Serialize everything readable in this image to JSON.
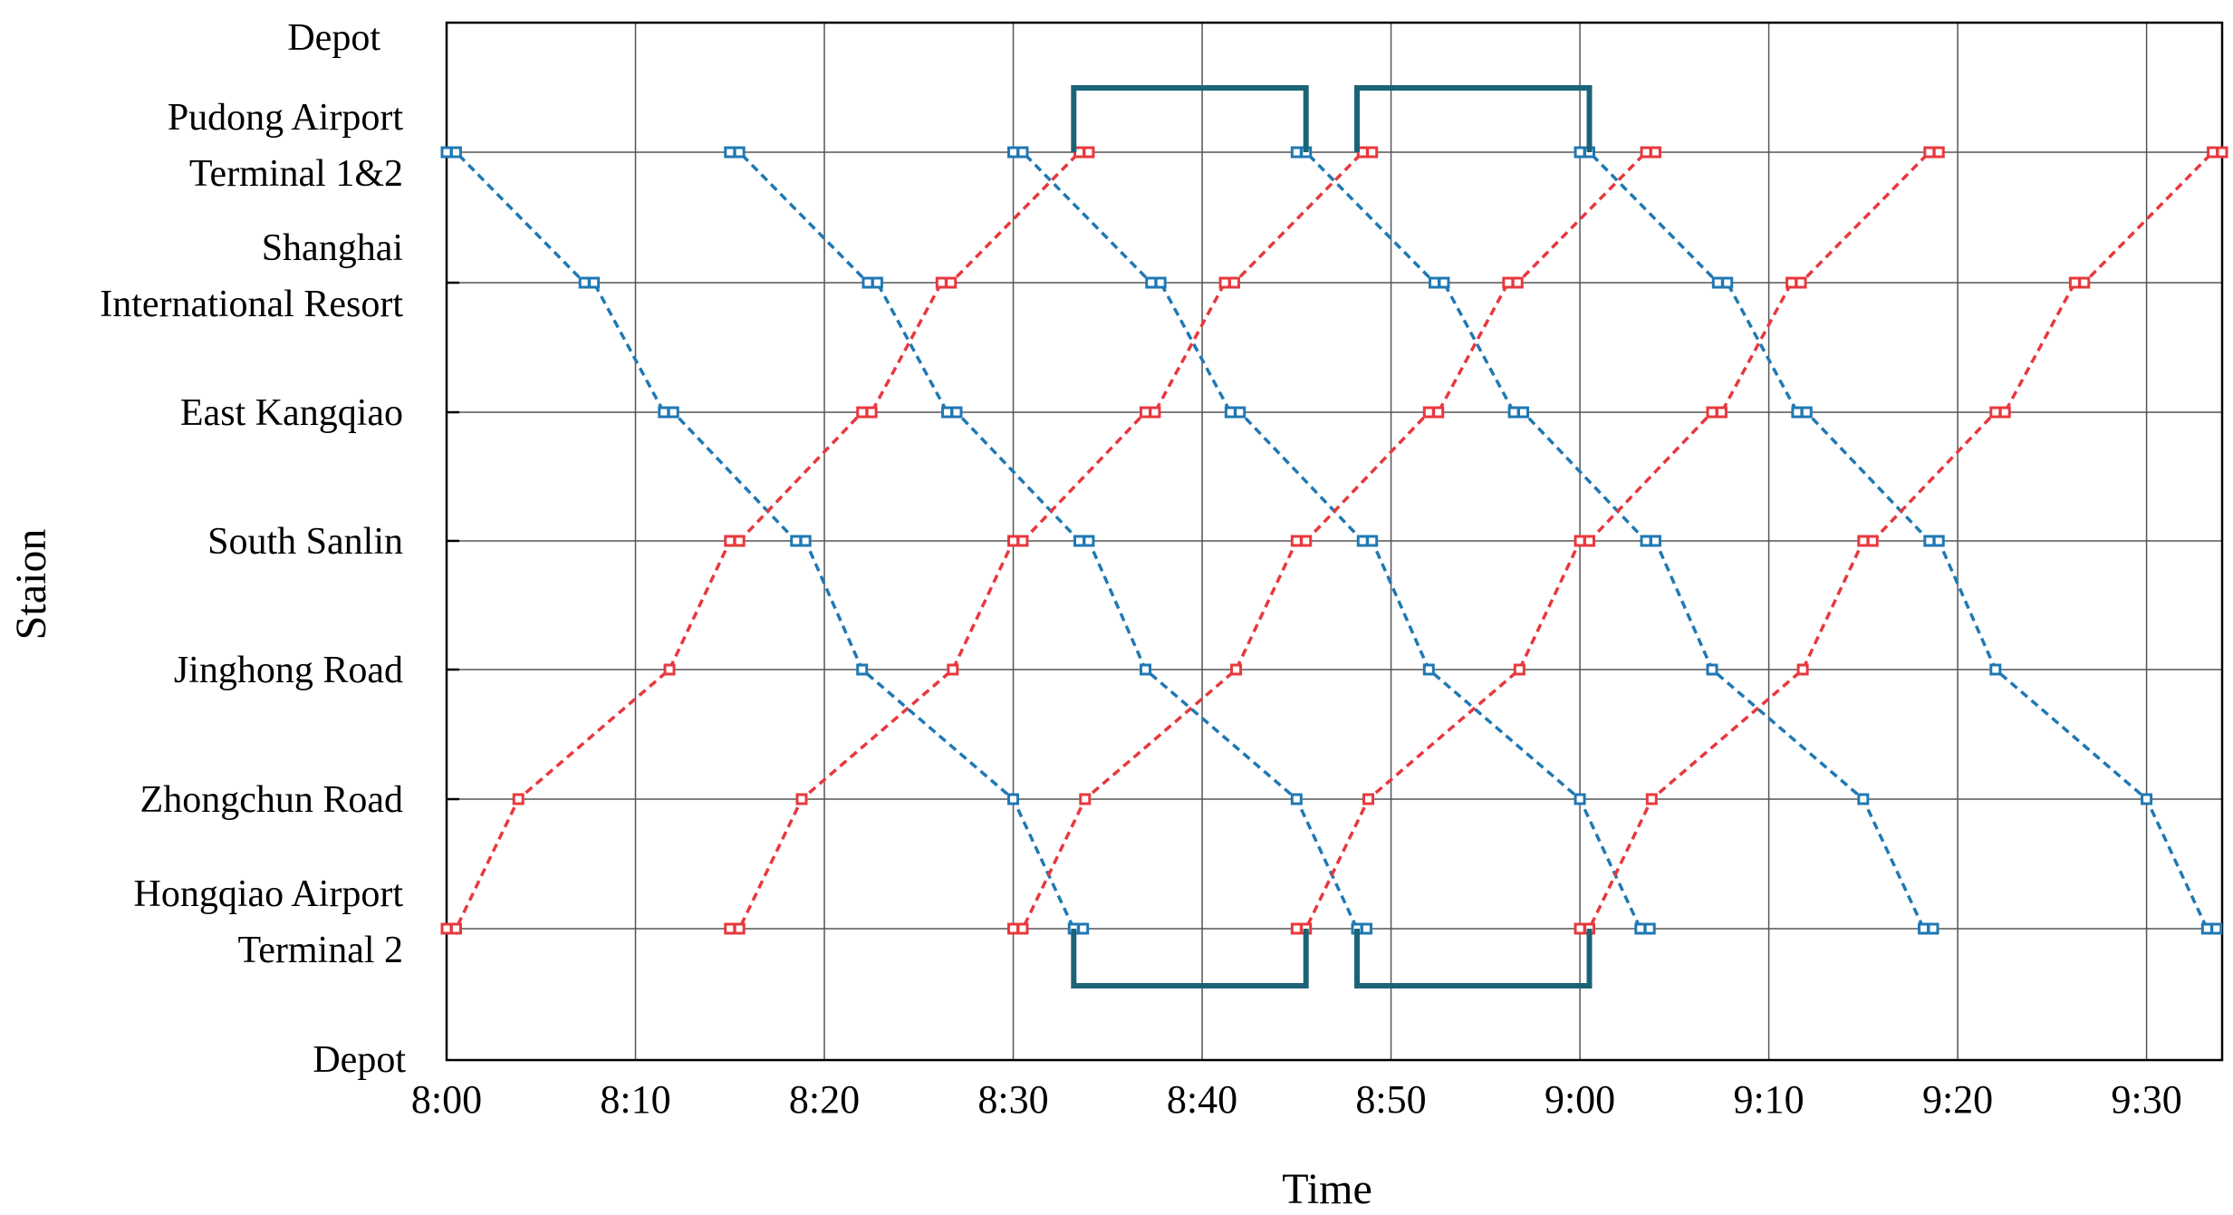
{
  "chart_data": {
    "type": "line",
    "xlabel": "Time",
    "ylabel": "Staion",
    "x_unit": "minutes after 8:00",
    "x_ticks": [
      0,
      10,
      20,
      30,
      40,
      50,
      60,
      70,
      80,
      90
    ],
    "x_tick_labels": [
      "8:00",
      "8:10",
      "8:20",
      "8:30",
      "8:40",
      "8:50",
      "9:00",
      "9:10",
      "9:20",
      "9:30"
    ],
    "xlim": [
      0,
      94
    ],
    "stations": [
      [
        "Hongqiao Airport",
        "Terminal 2"
      ],
      [
        "Zhongchun Road"
      ],
      [
        "Jinghong Road"
      ],
      [
        "South Sanlin"
      ],
      [
        "East Kangqiao"
      ],
      [
        "Shanghai",
        "International Resort"
      ],
      [
        "Pudong Airport",
        "Terminal 1&2"
      ]
    ],
    "depot_labels": {
      "top": "Depot",
      "bottom": "Depot"
    },
    "grid": true,
    "colors": {
      "down": "#1f78b4",
      "up": "#e8383d",
      "depot": "#1b6478",
      "grid": "#555555"
    },
    "down_trains": [
      [
        0.0,
        0.5,
        7.3,
        7.8,
        11.5,
        12.0,
        18.5,
        19.0,
        22.0,
        30.0,
        33.2,
        33.7
      ],
      [
        15.0,
        15.5,
        22.3,
        22.8,
        26.5,
        27.0,
        33.5,
        34.0,
        37.0,
        45.0,
        48.2,
        48.7
      ],
      [
        30.0,
        30.5,
        37.3,
        37.8,
        41.5,
        42.0,
        48.5,
        49.0,
        52.0,
        60.0,
        63.2,
        63.7
      ],
      [
        45.0,
        45.5,
        52.3,
        52.8,
        56.5,
        57.0,
        63.5,
        64.0,
        67.0,
        75.0,
        78.2,
        78.7
      ],
      [
        60.0,
        60.5,
        67.3,
        67.8,
        71.5,
        72.0,
        78.5,
        79.0,
        82.0,
        90.0,
        93.2,
        93.7
      ]
    ],
    "up_trains": [
      [
        0.0,
        0.5,
        3.8,
        11.8,
        15.0,
        15.5,
        22.0,
        22.5,
        26.2,
        26.7,
        33.5,
        34.0
      ],
      [
        15.0,
        15.5,
        18.8,
        26.8,
        30.0,
        30.5,
        37.0,
        37.5,
        41.2,
        41.7,
        48.5,
        49.0
      ],
      [
        30.0,
        30.5,
        33.8,
        41.8,
        45.0,
        45.5,
        52.0,
        52.5,
        56.2,
        56.7,
        63.5,
        64.0
      ],
      [
        45.0,
        45.5,
        48.8,
        56.8,
        60.0,
        60.5,
        67.0,
        67.5,
        71.2,
        71.7,
        78.5,
        79.0
      ],
      [
        60.0,
        60.5,
        63.8,
        71.8,
        75.0,
        75.5,
        82.0,
        82.5,
        86.2,
        86.7,
        93.5,
        94.0
      ]
    ],
    "depot_runs": [
      {
        "end": "top",
        "from": 33.2,
        "to": 45.5
      },
      {
        "end": "top",
        "from": 48.2,
        "to": 60.5
      },
      {
        "end": "bottom",
        "from": 33.2,
        "to": 45.5
      },
      {
        "end": "bottom",
        "from": 48.2,
        "to": 60.5
      }
    ]
  }
}
